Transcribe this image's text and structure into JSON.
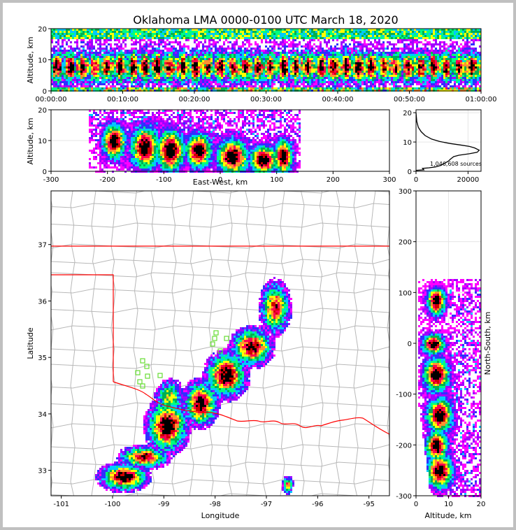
{
  "title": "Oklahoma LMA 0000-0100 UTC March 18, 2020",
  "colors": {
    "palette": [
      "#ff00ff",
      "#a000ff",
      "#3030ff",
      "#00c8ff",
      "#00ff80",
      "#00b050",
      "#ffff00",
      "#ff9030",
      "#ff0050",
      "#d00000",
      "#000000"
    ],
    "state_border": "#ff0000",
    "county_lines": "#b0b0b0",
    "stations": "#66dd33"
  },
  "panels": {
    "time_height": {
      "ylabel": "Altitude, km"
    },
    "ew_height": {
      "ylabel": "Altitude, km",
      "xlabel": "East-West, km"
    },
    "histogram": {
      "annotation": "1,046,608 sources"
    },
    "plan_view": {
      "ylabel": "Latitude",
      "xlabel": "Longitude"
    },
    "ns_height": {
      "ylabel": "North-South, km",
      "xlabel": "Altitude, km"
    }
  },
  "chart_data": [
    {
      "type": "heatmap",
      "panel": "time_height",
      "x_ticks": [
        "00:00:00",
        "00:10:00",
        "00:20:00",
        "00:30:00",
        "00:40:00",
        "00:50:00",
        "01:00:00"
      ],
      "ylim": [
        0,
        20
      ],
      "y_ticks": [
        0,
        10,
        20
      ],
      "ylabel": "Altitude, km"
    },
    {
      "type": "heatmap",
      "panel": "ew_height",
      "xlim": [
        -300,
        300
      ],
      "ylim": [
        0,
        20
      ],
      "x_ticks": [
        -300,
        -200,
        -100,
        0,
        100,
        200,
        300
      ],
      "y_ticks": [
        0,
        10,
        20
      ],
      "xlabel": "East-West, km",
      "ylabel": "Altitude, km",
      "grid": true
    },
    {
      "type": "line",
      "panel": "histogram",
      "xlim": [
        0,
        25000
      ],
      "ylim": [
        0,
        21
      ],
      "x_ticks": [
        0,
        20000
      ],
      "y_ticks": [
        0,
        10,
        20
      ],
      "x": [
        12,
        300,
        900,
        2000,
        3500,
        6000,
        9000,
        13000,
        17000,
        20500,
        22500,
        24300,
        23500,
        20500,
        16500,
        14500,
        13300,
        12500,
        11500,
        10500,
        9500,
        7500,
        5000,
        2500,
        3000,
        20
      ],
      "y": [
        20.0,
        17.0,
        15.0,
        13.5,
        12.2,
        11.0,
        10.2,
        9.5,
        9.0,
        8.5,
        8.0,
        7.2,
        6.5,
        6.0,
        5.5,
        5.0,
        4.2,
        3.5,
        3.0,
        2.5,
        2.0,
        1.5,
        1.2,
        1.0,
        0.5,
        0.3
      ],
      "annotation": "1,046,608 sources"
    },
    {
      "type": "heatmap",
      "panel": "plan_view",
      "xlim": [
        -101.2,
        -94.6
      ],
      "ylim": [
        32.55,
        37.95
      ],
      "x_ticks": [
        -101,
        -100,
        -99,
        -98,
        -97,
        -96,
        -95
      ],
      "y_ticks": [
        33,
        34,
        35,
        36,
        37
      ],
      "xlabel": "Longitude",
      "ylabel": "Latitude"
    },
    {
      "type": "heatmap",
      "panel": "ns_height",
      "xlim": [
        0,
        20
      ],
      "ylim": [
        -300,
        300
      ],
      "x_ticks": [
        0,
        10,
        20
      ],
      "y_ticks": [
        300,
        200,
        100,
        0,
        -100,
        -200,
        -300
      ],
      "xlabel": "Altitude, km",
      "ylabel": "North-South, km",
      "grid": true
    }
  ]
}
